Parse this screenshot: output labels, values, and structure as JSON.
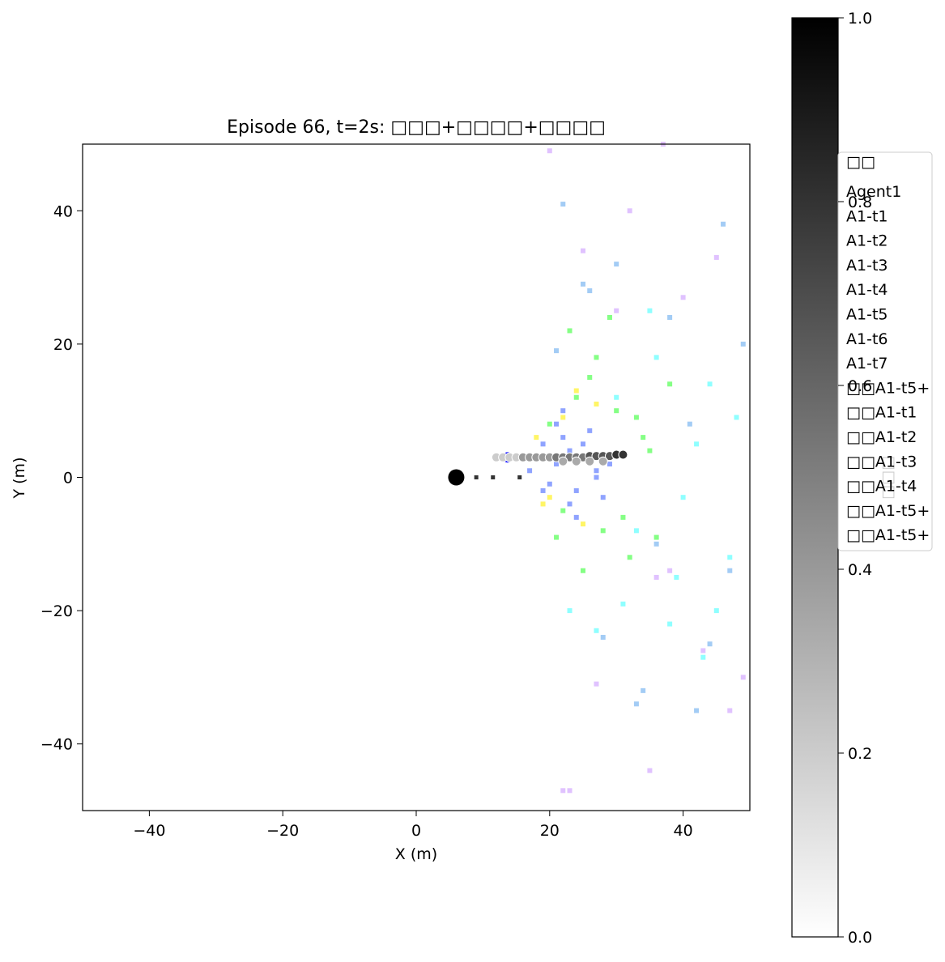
{
  "chart_data": {
    "type": "scatter",
    "title": "Episode 66, t=2s: □□□+□□□□+□□□□",
    "xlabel": "X (m)",
    "ylabel": "Y (m)",
    "xlim": [
      -50,
      50
    ],
    "ylim": [
      -50,
      50
    ],
    "xticks": [
      {
        "value": -40,
        "label": "−40"
      },
      {
        "value": -20,
        "label": "−20"
      },
      0,
      20,
      40
    ],
    "yticks": [
      {
        "value": -40,
        "label": "−40"
      },
      {
        "value": -20,
        "label": "−20"
      },
      0,
      20,
      40
    ],
    "legend_title": "□□",
    "legend": "upper-right",
    "colorbar": {
      "label": "□□□",
      "clim": [
        0,
        1
      ],
      "cmap": [
        "#ffffff",
        "#000000"
      ],
      "ticks": [
        {
          "value": 0,
          "label": "0.0"
        },
        0.2,
        0.4,
        0.6,
        0.8,
        {
          "value": 1,
          "label": "1.0"
        }
      ]
    },
    "series": [
      {
        "name": "Agent1",
        "color": "#000000",
        "marker": "big",
        "x": [
          6
        ],
        "y": [
          0
        ]
      },
      {
        "name": "A1-t1",
        "color": "#4466ff",
        "marker": "square",
        "x": [
          17,
          18,
          19,
          20,
          21,
          22,
          23,
          24,
          25,
          26,
          27,
          28,
          19,
          21,
          23,
          25,
          27,
          29,
          22,
          24
        ],
        "y": [
          1,
          3,
          5,
          -1,
          2,
          6,
          4,
          -2,
          3,
          7,
          1,
          -3,
          -2,
          8,
          -4,
          5,
          0,
          2,
          10,
          -6
        ]
      },
      {
        "name": "A1-t2",
        "color": "#33ff33",
        "marker": "square",
        "x": [
          20,
          22,
          24,
          26,
          28,
          30,
          32,
          34,
          36,
          23,
          27,
          31,
          35,
          25,
          29,
          33,
          21,
          38
        ],
        "y": [
          8,
          -5,
          12,
          15,
          -8,
          10,
          -12,
          6,
          -9,
          22,
          18,
          -6,
          4,
          -14,
          24,
          9,
          -9,
          14
        ]
      },
      {
        "name": "A1-t3",
        "color": "#ffee00",
        "marker": "square",
        "x": [
          18,
          20,
          22,
          25,
          27,
          19,
          24
        ],
        "y": [
          6,
          -3,
          9,
          -7,
          11,
          -4,
          13
        ]
      },
      {
        "name": "A1-t4",
        "color": "#44ffff",
        "marker": "square",
        "x": [
          30,
          33,
          36,
          39,
          42,
          45,
          48,
          35,
          40,
          44,
          47,
          31,
          38,
          43,
          23,
          27
        ],
        "y": [
          12,
          -8,
          18,
          -15,
          5,
          -20,
          9,
          25,
          -3,
          14,
          -12,
          -19,
          -22,
          -27,
          -20,
          -23
        ]
      },
      {
        "name": "A1-t5",
        "color": "#66aaee",
        "marker": "square",
        "x": [
          22,
          26,
          30,
          34,
          38,
          42,
          46,
          49,
          28,
          36,
          44,
          25,
          21,
          33,
          41,
          47
        ],
        "y": [
          41,
          28,
          32,
          -32,
          24,
          -35,
          38,
          20,
          -24,
          -10,
          -25,
          29,
          19,
          -34,
          8,
          -14
        ]
      },
      {
        "name": "A1-t6",
        "color": "#cc99ff",
        "marker": "square",
        "x": [
          20,
          25,
          30,
          35,
          40,
          45,
          49,
          37,
          43,
          27,
          47,
          38,
          22,
          23,
          36,
          32
        ],
        "y": [
          49,
          34,
          25,
          -44,
          27,
          33,
          -30,
          50,
          -26,
          -31,
          -35,
          -14,
          -47,
          -47,
          -15,
          40
        ]
      },
      {
        "name": "A1-t7",
        "color": "#333333",
        "marker": "dot",
        "x": [
          9,
          11.5,
          15.5
        ],
        "y": [
          0,
          0,
          0
        ]
      },
      {
        "name": "□□A1-t5+",
        "color": "#0000ff",
        "marker": "circle",
        "x": [
          13.7
        ],
        "y": [
          3
        ]
      },
      {
        "name": "□□A1-t1",
        "color": "#cccccc",
        "marker": "ring",
        "x": [
          12,
          13,
          14,
          15
        ],
        "y": [
          3,
          3,
          3,
          3
        ]
      },
      {
        "name": "□□A1-t2",
        "color": "#999999",
        "marker": "ring",
        "x": [
          16,
          17,
          18,
          19,
          20
        ],
        "y": [
          3,
          3,
          3,
          3,
          3
        ]
      },
      {
        "name": "□□A1-t3",
        "color": "#777777",
        "marker": "ring",
        "x": [
          21,
          22,
          23,
          24,
          25
        ],
        "y": [
          3,
          3,
          3,
          3,
          3
        ]
      },
      {
        "name": "□□A1-t4",
        "color": "#555555",
        "marker": "ring",
        "x": [
          26,
          27,
          28,
          29
        ],
        "y": [
          3.2,
          3.2,
          3.2,
          3.2
        ]
      },
      {
        "name": "□□A1-t5+",
        "color": "#333333",
        "marker": "ring",
        "x": [
          30,
          31
        ],
        "y": [
          3.4,
          3.4
        ]
      },
      {
        "name": "□□A1-t5+",
        "color": "#aaaaaa",
        "marker": "ring",
        "x": [
          22,
          24,
          26,
          28
        ],
        "y": [
          2.4,
          2.4,
          2.4,
          2.4
        ]
      }
    ]
  }
}
